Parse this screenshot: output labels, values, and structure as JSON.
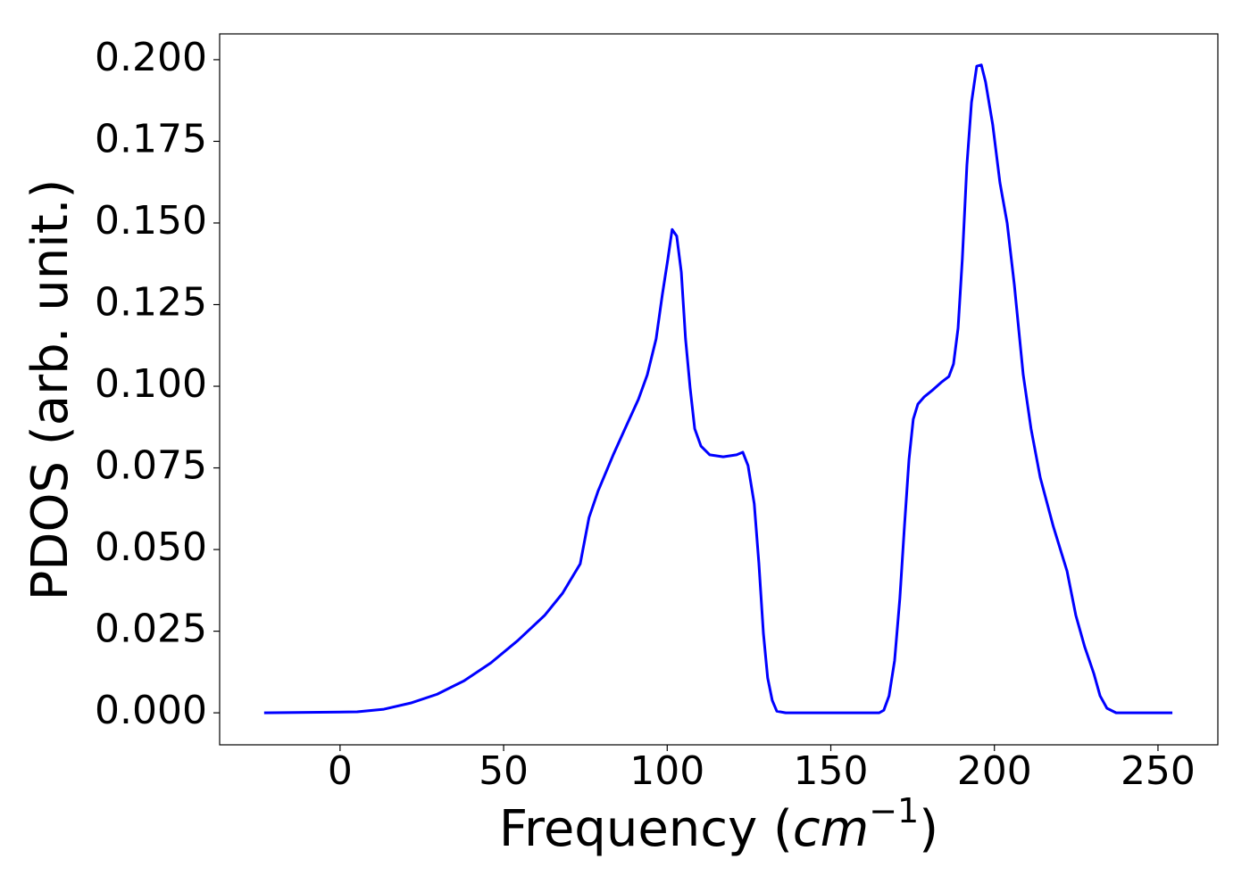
{
  "chart_data": {
    "type": "line",
    "xlabel": {
      "prefix": "Frequency (",
      "italic": "cm",
      "superscript": "−1",
      "suffix": ")"
    },
    "ylabel": "PDOS (arb. unit.)",
    "xlim": [
      -36.8,
      268.3
    ],
    "ylim": [
      -0.0098,
      0.2079
    ],
    "xticks": [
      0,
      50,
      100,
      150,
      200,
      250
    ],
    "yticks": [
      {
        "value": 0,
        "label": "0.000"
      },
      {
        "value": 0.025,
        "label": "0.025"
      },
      {
        "value": 0.05,
        "label": "0.050"
      },
      {
        "value": 0.075,
        "label": "0.075"
      },
      {
        "value": 0.1,
        "label": "0.100"
      },
      {
        "value": 0.125,
        "label": "0.125"
      },
      {
        "value": 0.15,
        "label": "0.150"
      },
      {
        "value": 0.175,
        "label": "0.175"
      },
      {
        "value": 0.2,
        "label": "0.200"
      }
    ],
    "grid": false,
    "series": [
      {
        "color": "#0000ff",
        "x": [
          -23.2,
          5.2,
          13.4,
          21.6,
          29.7,
          37.9,
          46.1,
          54.3,
          62.5,
          68,
          73.4,
          76.1,
          78.9,
          83.5,
          87.1,
          91.2,
          93.9,
          96.6,
          98.5,
          100.2,
          101.5,
          102.9,
          104.3,
          105.6,
          107,
          108.4,
          110.3,
          113,
          117.1,
          121.2,
          123.1,
          124.7,
          126.6,
          128,
          129.4,
          130.7,
          132.1,
          133.5,
          136.2,
          164.8,
          166.2,
          167.8,
          169.5,
          171.1,
          172.5,
          173.9,
          175.2,
          176.6,
          178.5,
          181.2,
          184,
          186.1,
          187.5,
          188.9,
          190.2,
          191.6,
          193,
          194.6,
          196,
          197.3,
          199.5,
          201.7,
          203.9,
          206.1,
          208.8,
          211.2,
          214,
          218,
          222.2,
          224.9,
          227.6,
          230.4,
          232.3,
          234.4,
          237.2,
          254.4
        ],
        "values": [
          0,
          0.0003,
          0.0011,
          0.003,
          0.0057,
          0.0098,
          0.0153,
          0.0221,
          0.0298,
          0.0366,
          0.0456,
          0.0598,
          0.068,
          0.079,
          0.087,
          0.096,
          0.1035,
          0.1145,
          0.128,
          0.139,
          0.148,
          0.146,
          0.135,
          0.1145,
          0.0995,
          0.087,
          0.0817,
          0.079,
          0.0784,
          0.079,
          0.0798,
          0.0757,
          0.064,
          0.046,
          0.0243,
          0.0107,
          0.0038,
          0.0005,
          0,
          0,
          0.0008,
          0.0052,
          0.016,
          0.035,
          0.057,
          0.0776,
          0.0899,
          0.0945,
          0.0967,
          0.0989,
          0.1014,
          0.103,
          0.1068,
          0.1178,
          0.139,
          0.1678,
          0.1869,
          0.198,
          0.1984,
          0.1932,
          0.18,
          0.1623,
          0.15,
          0.131,
          0.1036,
          0.087,
          0.0721,
          0.0571,
          0.0434,
          0.0298,
          0.0202,
          0.012,
          0.0052,
          0.0014,
          0,
          0
        ]
      }
    ]
  }
}
